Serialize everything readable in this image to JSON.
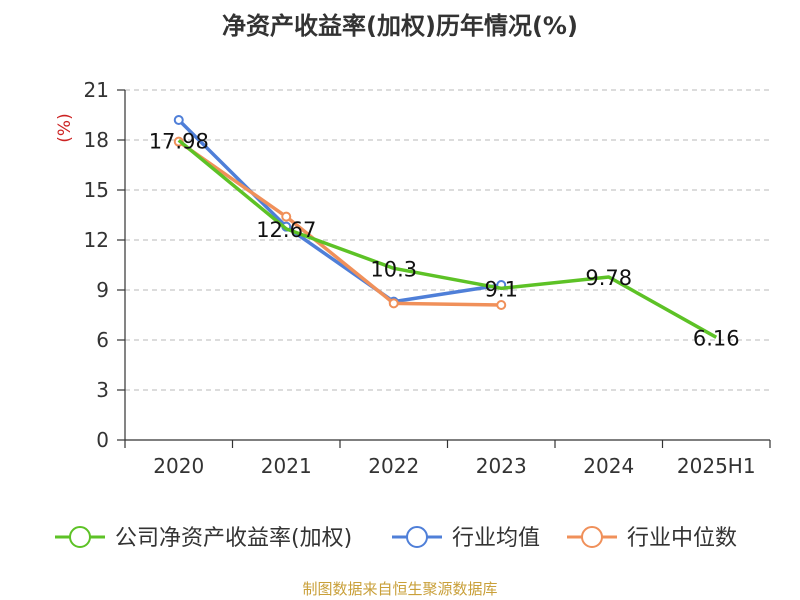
{
  "title": "净资产收益率(加权)历年情况(%)",
  "source": "制图数据来自恒生聚源数据库",
  "chart_data": {
    "type": "line",
    "title": "净资产收益率(加权)历年情况(%)",
    "ylabel": "(%)",
    "ylim": [
      0,
      21
    ],
    "yticks": [
      0,
      3,
      6,
      9,
      12,
      15,
      18,
      21
    ],
    "categories": [
      "2020",
      "2021",
      "2022",
      "2023",
      "2024",
      "2025H1"
    ],
    "grid": true,
    "legend_position": "bottom",
    "series": [
      {
        "name": "公司净资产收益率(加权)",
        "color": "#5dc226",
        "values": [
          17.98,
          12.67,
          10.3,
          9.1,
          9.78,
          6.16
        ],
        "labels": [
          "17.98",
          "12.67",
          "10.3",
          "9.1",
          "9.78",
          "6.16"
        ]
      },
      {
        "name": "行业均值",
        "color": "#4f7fd8",
        "values": [
          19.2,
          12.8,
          8.3,
          9.3,
          null,
          null
        ]
      },
      {
        "name": "行业中位数",
        "color": "#f0905a",
        "values": [
          17.9,
          13.4,
          8.2,
          8.1,
          null,
          null
        ]
      }
    ]
  }
}
